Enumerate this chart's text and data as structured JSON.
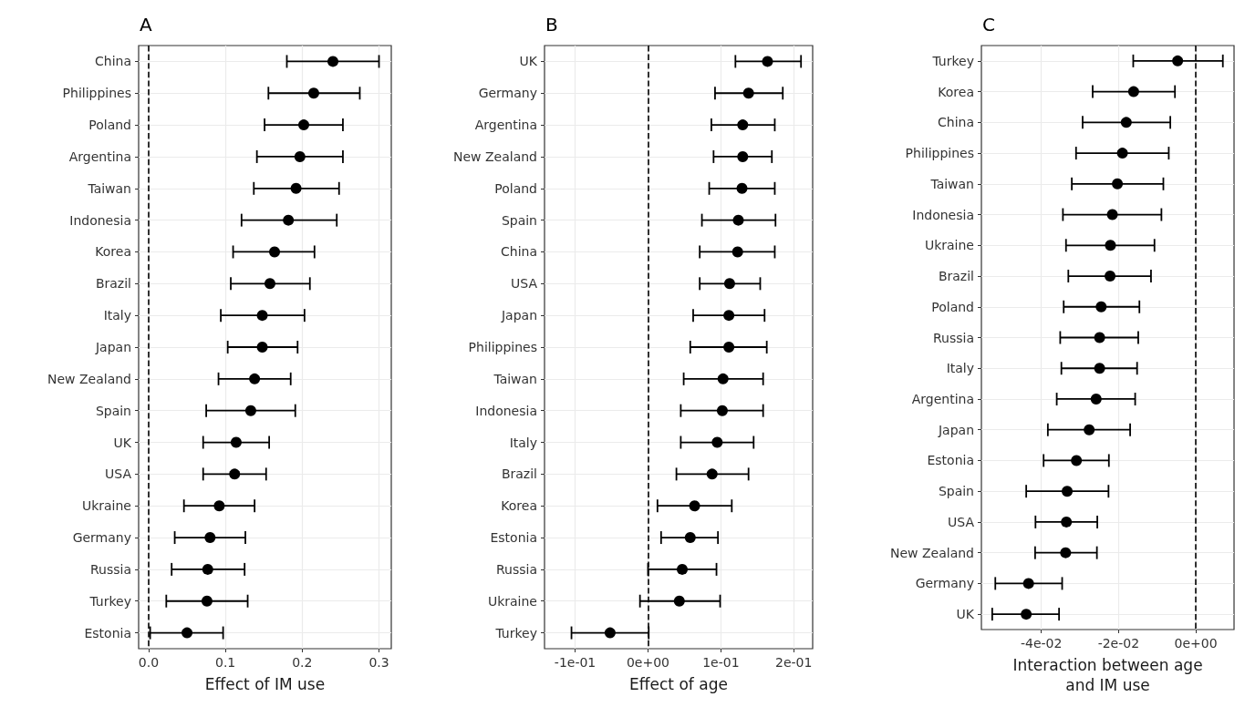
{
  "chart_data": [
    {
      "type": "scatter",
      "orientation": "horizontal",
      "title": "A",
      "xlabel": "Effect of IM use",
      "categories": [
        "China",
        "Philippines",
        "Poland",
        "Argentina",
        "Taiwan",
        "Indonesia",
        "Korea",
        "Brazil",
        "Italy",
        "Japan",
        "New Zealand",
        "Spain",
        "UK",
        "USA",
        "Ukraine",
        "Germany",
        "Russia",
        "Turkey",
        "Estonia"
      ],
      "values": [
        0.24,
        0.215,
        0.202,
        0.197,
        0.192,
        0.182,
        0.164,
        0.158,
        0.148,
        0.148,
        0.138,
        0.133,
        0.114,
        0.112,
        0.092,
        0.08,
        0.077,
        0.076,
        0.05
      ],
      "errors": [
        [
          0.18,
          0.3
        ],
        [
          0.156,
          0.275
        ],
        [
          0.151,
          0.253
        ],
        [
          0.141,
          0.253
        ],
        [
          0.137,
          0.248
        ],
        [
          0.121,
          0.245
        ],
        [
          0.11,
          0.216
        ],
        [
          0.107,
          0.21
        ],
        [
          0.094,
          0.203
        ],
        [
          0.103,
          0.194
        ],
        [
          0.091,
          0.185
        ],
        [
          0.075,
          0.191
        ],
        [
          0.071,
          0.157
        ],
        [
          0.071,
          0.153
        ],
        [
          0.046,
          0.138
        ],
        [
          0.034,
          0.126
        ],
        [
          0.03,
          0.125
        ],
        [
          0.023,
          0.129
        ],
        [
          0.002,
          0.097
        ]
      ],
      "color": "#000000",
      "marker": "circle",
      "xlim": [
        -0.013,
        0.316
      ],
      "xticks": [
        {
          "value": 0,
          "label": "0.0"
        },
        0.1,
        0.2,
        0.3
      ],
      "ref_lines": [
        {
          "axis": "x",
          "value": 0,
          "line_style": "dashed"
        }
      ],
      "grid": true
    },
    {
      "type": "scatter",
      "orientation": "horizontal",
      "title": "B",
      "xlabel": "Effect of age",
      "categories": [
        "UK",
        "Germany",
        "Argentina",
        "New Zealand",
        "Poland",
        "Spain",
        "China",
        "USA",
        "Japan",
        "Philippines",
        "Taiwan",
        "Indonesia",
        "Italy",
        "Brazil",
        "Korea",
        "Estonia",
        "Russia",
        "Ukraine",
        "Turkey"
      ],
      "values": [
        0.164,
        0.138,
        0.13,
        0.13,
        0.129,
        0.124,
        0.123,
        0.112,
        0.111,
        0.111,
        0.103,
        0.102,
        0.095,
        0.088,
        0.064,
        0.058,
        0.047,
        0.043,
        -0.052
      ],
      "errors": [
        [
          0.12,
          0.21
        ],
        [
          0.092,
          0.185
        ],
        [
          0.087,
          0.174
        ],
        [
          0.09,
          0.17
        ],
        [
          0.084,
          0.174
        ],
        [
          0.074,
          0.175
        ],
        [
          0.071,
          0.174
        ],
        [
          0.071,
          0.154
        ],
        [
          0.062,
          0.16
        ],
        [
          0.058,
          0.163
        ],
        [
          0.049,
          0.158
        ],
        [
          0.045,
          0.158
        ],
        [
          0.045,
          0.145
        ],
        [
          0.039,
          0.138
        ],
        [
          0.013,
          0.115
        ],
        [
          0.018,
          0.096
        ],
        [
          0.0,
          0.094
        ],
        [
          -0.011,
          0.099
        ],
        [
          -0.105,
          0.001
        ]
      ],
      "color": "#000000",
      "marker": "circle",
      "xlim": [
        -0.142,
        0.226
      ],
      "xticks": [
        {
          "value": -0.1,
          "label": "-1e-01"
        },
        {
          "value": 0,
          "label": "0e+00"
        },
        {
          "value": 0.1,
          "label": "1e-01"
        },
        {
          "value": 0.2,
          "label": "2e-01"
        }
      ],
      "ref_lines": [
        {
          "axis": "x",
          "value": 0,
          "line_style": "dashed"
        }
      ],
      "grid": true
    },
    {
      "type": "scatter",
      "orientation": "horizontal",
      "title": "C",
      "xlabel": "Interaction between age\nand IM use",
      "categories": [
        "Turkey",
        "Korea",
        "China",
        "Philippines",
        "Taiwan",
        "Indonesia",
        "Ukraine",
        "Brazil",
        "Poland",
        "Russia",
        "Italy",
        "Argentina",
        "Japan",
        "Estonia",
        "Spain",
        "USA",
        "New Zealand",
        "Germany",
        "UK"
      ],
      "values": [
        -0.0047,
        -0.0161,
        -0.018,
        -0.019,
        -0.0203,
        -0.0216,
        -0.0221,
        -0.0222,
        -0.0245,
        -0.0249,
        -0.0249,
        -0.0258,
        -0.0276,
        -0.0309,
        -0.0333,
        -0.0335,
        -0.0337,
        -0.0433,
        -0.0439
      ],
      "errors": [
        [
          -0.0162,
          0.007
        ],
        [
          -0.0267,
          -0.0054
        ],
        [
          -0.0293,
          -0.0066
        ],
        [
          -0.031,
          -0.007
        ],
        [
          -0.0321,
          -0.0084
        ],
        [
          -0.0344,
          -0.0089
        ],
        [
          -0.0336,
          -0.0107
        ],
        [
          -0.033,
          -0.0116
        ],
        [
          -0.0342,
          -0.0146
        ],
        [
          -0.0351,
          -0.0149
        ],
        [
          -0.0348,
          -0.0152
        ],
        [
          -0.036,
          -0.0157
        ],
        [
          -0.0383,
          -0.017
        ],
        [
          -0.0394,
          -0.0225
        ],
        [
          -0.0439,
          -0.0226
        ],
        [
          -0.0415,
          -0.0255
        ],
        [
          -0.0416,
          -0.0256
        ],
        [
          -0.0519,
          -0.0346
        ],
        [
          -0.0527,
          -0.0354
        ]
      ],
      "color": "#000000",
      "marker": "circle",
      "xlim": [
        -0.0555,
        0.0099
      ],
      "xticks": [
        {
          "value": -0.04,
          "label": "-4e-02"
        },
        {
          "value": -0.02,
          "label": "-2e-02"
        },
        {
          "value": 0,
          "label": "0e+00"
        }
      ],
      "ref_lines": [
        {
          "axis": "x",
          "value": 0,
          "line_style": "dashed"
        }
      ],
      "grid": true
    }
  ]
}
